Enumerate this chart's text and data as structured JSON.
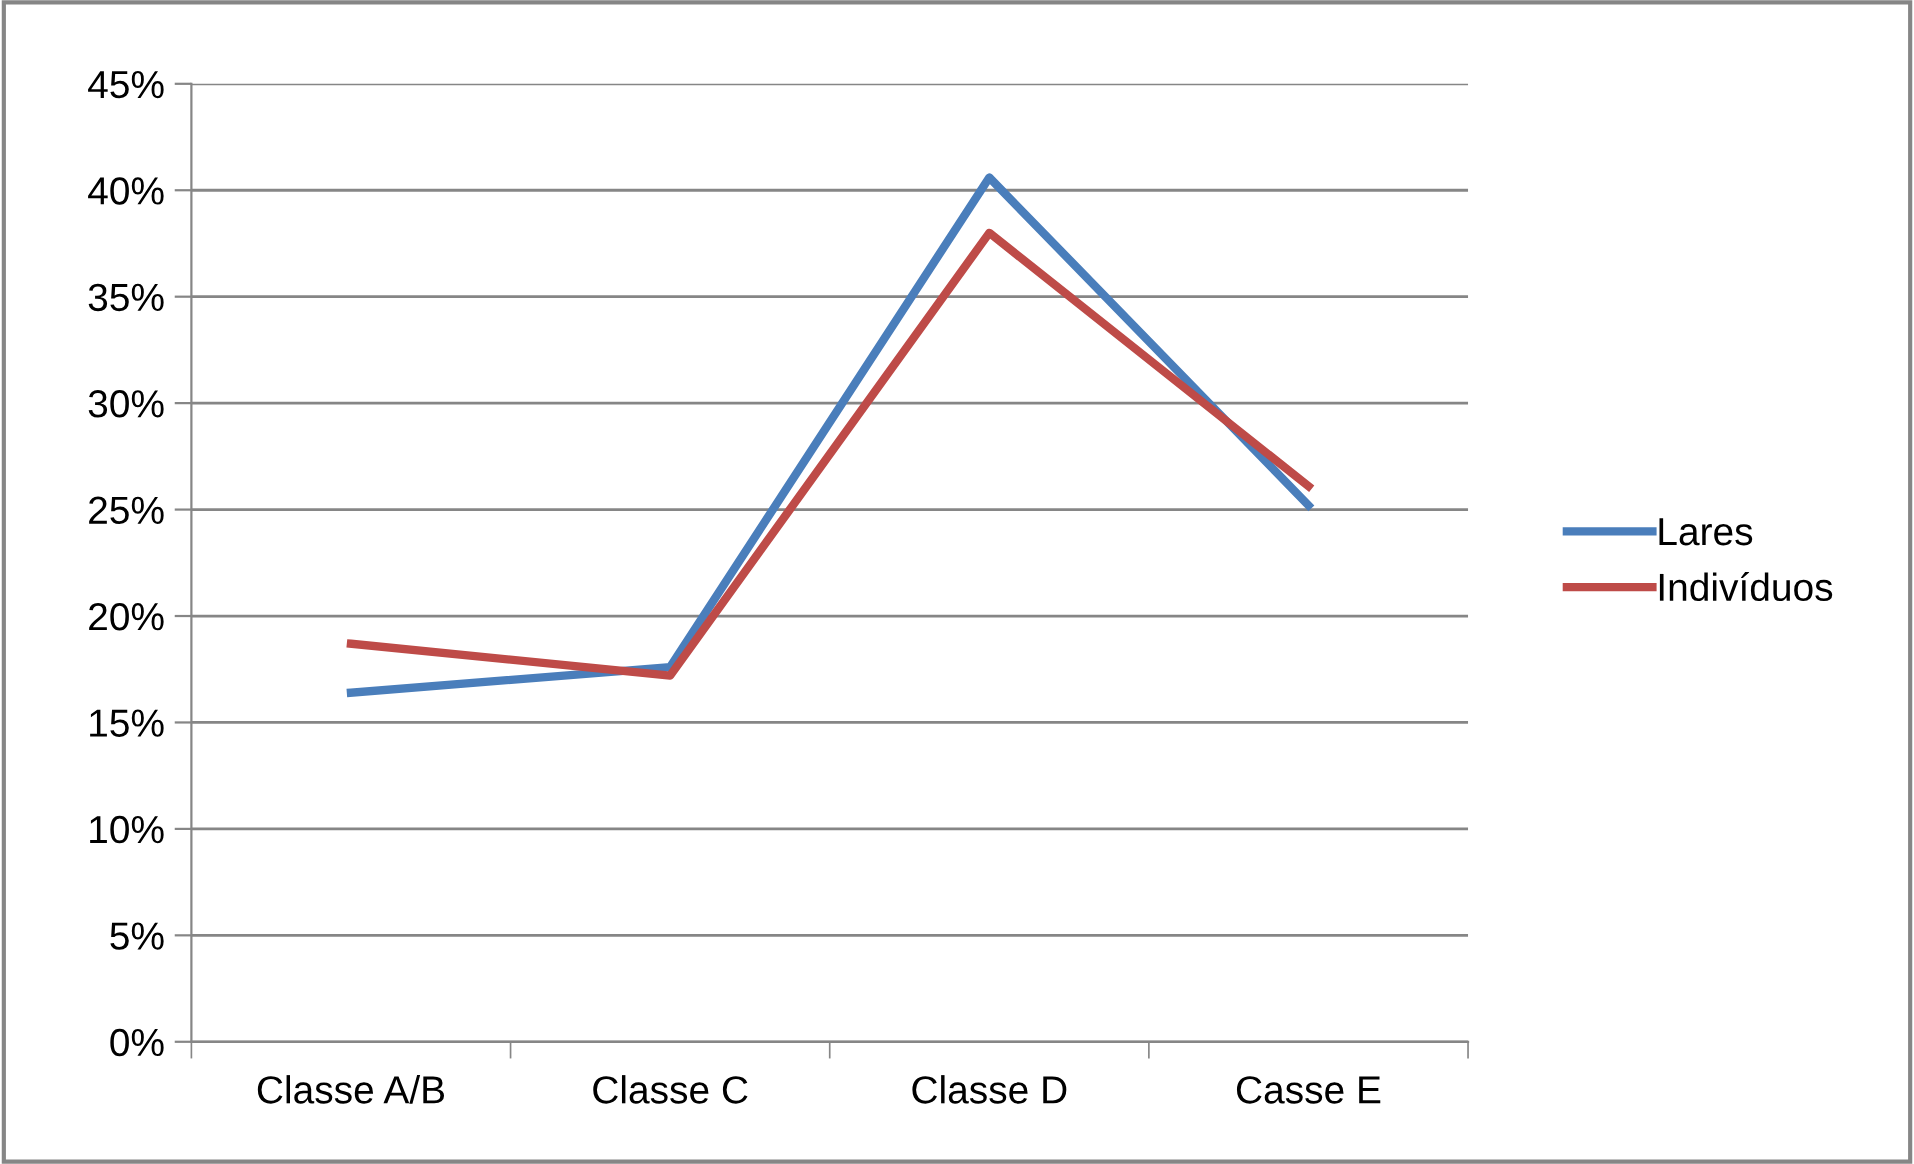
{
  "chart_data": {
    "type": "line",
    "categories": [
      "Classe A/B",
      "Classe C",
      "Classe D",
      "Casse E"
    ],
    "series": [
      {
        "name": "Lares",
        "color": "#4a7ebb",
        "values": [
          16.4,
          17.6,
          40.6,
          25.2
        ]
      },
      {
        "name": "Indivíduos",
        "color": "#be4b48",
        "values": [
          18.7,
          17.2,
          38.0,
          26.1
        ]
      }
    ],
    "ylim": [
      0,
      45
    ],
    "yticks": [
      {
        "value": 0,
        "label": "0%"
      },
      {
        "value": 5,
        "label": "5%"
      },
      {
        "value": 10,
        "label": "10%"
      },
      {
        "value": 15,
        "label": "15%"
      },
      {
        "value": 20,
        "label": "20%"
      },
      {
        "value": 25,
        "label": "25%"
      },
      {
        "value": 30,
        "label": "30%"
      },
      {
        "value": 35,
        "label": "35%"
      },
      {
        "value": 40,
        "label": "40%"
      },
      {
        "value": 45,
        "label": "45%"
      }
    ],
    "grid": "y",
    "legend": "right",
    "marker": "none",
    "line_style": "solid"
  }
}
